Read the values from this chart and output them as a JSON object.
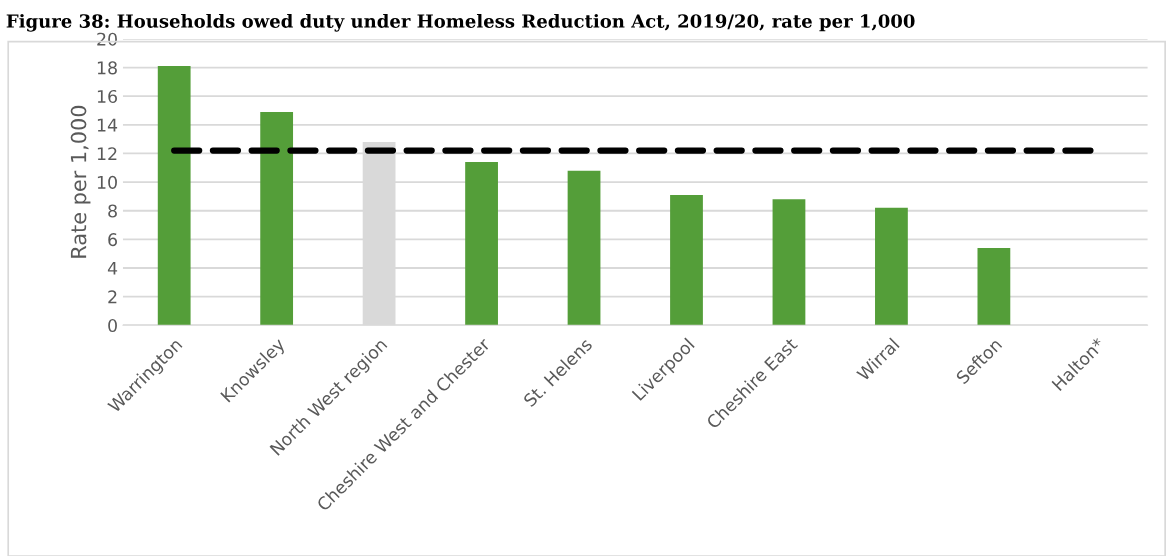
{
  "chart_data": {
    "type": "bar",
    "title": "Figure 38: Households owed duty under Homeless Reduction Act, 2019/20, rate per 1,000",
    "ylabel": "Rate per 1,000",
    "categories": [
      "Warrington",
      "Knowsley",
      "North West region",
      "Cheshire West and Chester",
      "St. Helens",
      "Liverpool",
      "Cheshire East",
      "Wirral",
      "Sefton",
      "Halton*"
    ],
    "series": [
      {
        "values": [
          18.1,
          14.9,
          12.8,
          11.4,
          10.8,
          9.1,
          8.8,
          8.2,
          5.4,
          null
        ],
        "colors": [
          "#549e39",
          "#549e39",
          "#d9d9d9",
          "#549e39",
          "#549e39",
          "#549e39",
          "#549e39",
          "#549e39",
          "#549e39",
          "#549e39"
        ]
      },
      {
        "type": "line",
        "values": [
          12.2,
          12.2,
          12.2,
          12.2,
          12.2,
          12.2,
          12.2,
          12.2,
          12.2,
          12.2
        ],
        "color": "#000000",
        "line_style": "dashed"
      }
    ],
    "ylim": [
      0,
      20
    ],
    "yticks": [
      0,
      2,
      4,
      6,
      8,
      10,
      12,
      14,
      16,
      18,
      20
    ],
    "grid": "y",
    "legend": false
  }
}
